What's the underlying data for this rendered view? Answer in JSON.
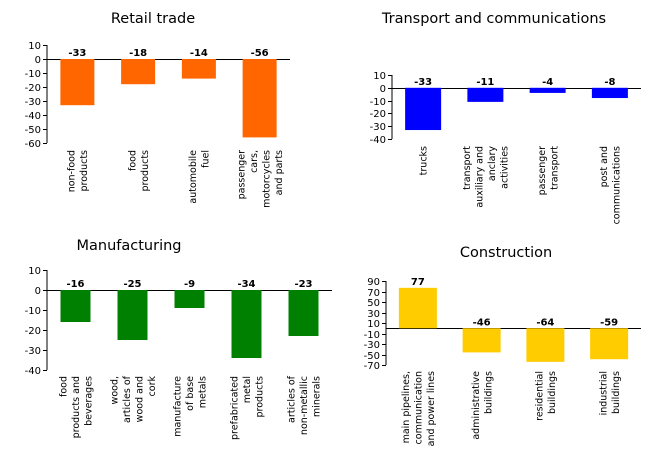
{
  "chart_data": [
    {
      "type": "bar",
      "title": "Retail trade",
      "categories": [
        [
          "non-food",
          "products"
        ],
        [
          "food",
          "products"
        ],
        [
          "automobile",
          "fuel"
        ],
        [
          "passenger",
          "cars,",
          "motorcycles",
          "and parts"
        ]
      ],
      "values": [
        -33,
        -18,
        -14,
        -56
      ],
      "value_labels": [
        "-33",
        "-18",
        "-14",
        "-56"
      ],
      "ylim": [
        -60,
        10
      ],
      "yticks": [
        10,
        0,
        -10,
        -20,
        -30,
        -40,
        -50,
        -60
      ],
      "color": "#ff6600"
    },
    {
      "type": "bar",
      "title": "Transport and communications",
      "categories": [
        [
          "trucks"
        ],
        [
          "transport",
          "auxiliary and",
          "anclary",
          "activities"
        ],
        [
          "passenger",
          "transport"
        ],
        [
          "post and",
          "communications"
        ]
      ],
      "values": [
        -33,
        -11,
        -4,
        -8
      ],
      "value_labels": [
        "-33",
        "-11",
        "-4",
        "-8"
      ],
      "ylim": [
        -40,
        10
      ],
      "yticks": [
        10,
        0,
        -10,
        -20,
        -30,
        -40
      ],
      "color": "#0000ff"
    },
    {
      "type": "bar",
      "title": "Manufacturing",
      "categories": [
        [
          "food",
          "products and",
          "beverages"
        ],
        [
          "wood,",
          "articles of",
          "wood and",
          "cork"
        ],
        [
          "manufacture",
          "of base",
          "metals"
        ],
        [
          "prefabricated",
          "metal",
          "products"
        ],
        [
          "articles of",
          "non-metallic",
          "minerals"
        ]
      ],
      "values": [
        -16,
        -25,
        -9,
        -34,
        -23
      ],
      "value_labels": [
        "-16",
        "-25",
        "-9",
        "-34",
        "-23"
      ],
      "ylim": [
        -40,
        10
      ],
      "yticks": [
        10,
        0,
        -10,
        -20,
        -30,
        -40
      ],
      "color": "#008000"
    },
    {
      "type": "bar",
      "title": "Construction",
      "categories": [
        [
          "main pipelines,",
          "communication",
          "and power lines"
        ],
        [
          "administrative",
          "buildings"
        ],
        [
          "residential",
          "buildings"
        ],
        [
          "industrial",
          "buildings"
        ]
      ],
      "values": [
        77,
        -46,
        -64,
        -59
      ],
      "value_labels": [
        "77",
        "-46",
        "-64",
        "-59"
      ],
      "ylim": [
        -70,
        90
      ],
      "yticks": [
        90,
        70,
        50,
        30,
        10,
        -10,
        -30,
        -50,
        -70
      ],
      "color": "#ffcc00"
    }
  ]
}
